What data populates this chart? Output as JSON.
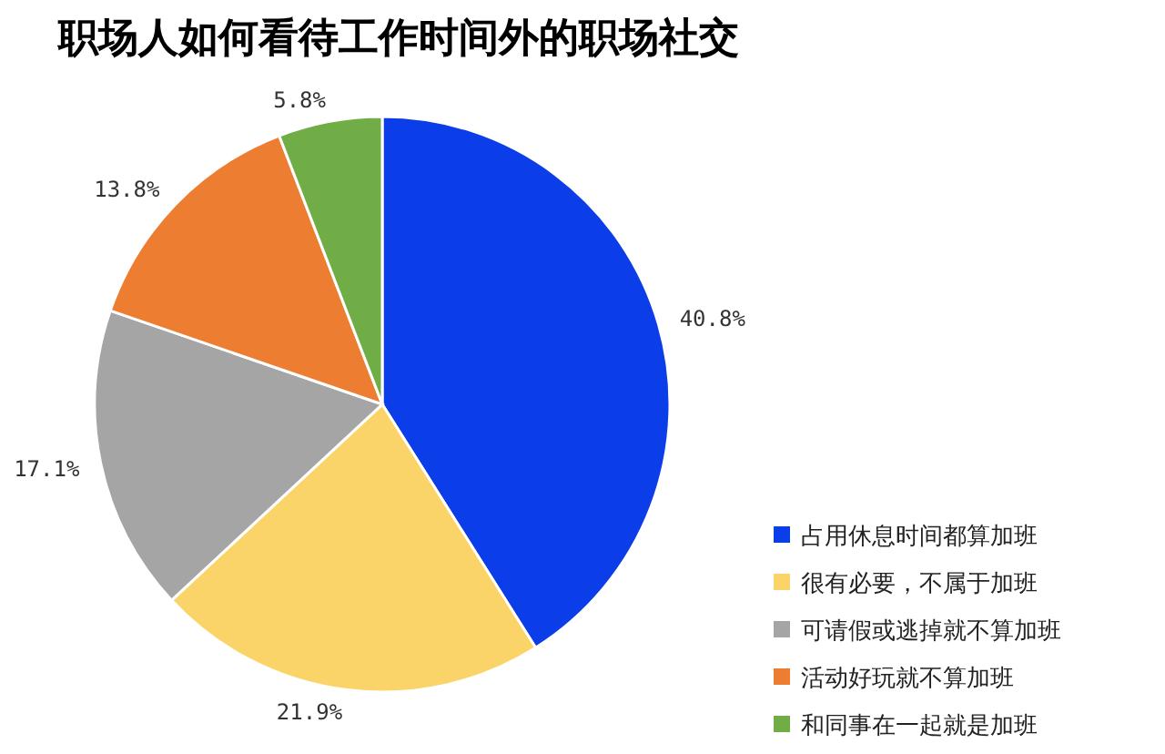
{
  "chart_data": {
    "type": "pie",
    "title": "职场人如何看待工作时间外的职场社交",
    "categories": [
      "占用休息时间都算加班",
      "很有必要，不属于加班",
      "可请假或逃掉就不算加班",
      "活动好玩就不算加班",
      "和同事在一起就是加班"
    ],
    "values": [
      40.8,
      21.9,
      17.1,
      13.8,
      5.8
    ],
    "colors": [
      "#0b3ee8",
      "#fbd469",
      "#a5a5a5",
      "#ed7d31",
      "#70ad47"
    ],
    "value_labels": [
      "40.8%",
      "21.9%",
      "17.1%",
      "13.8%",
      "5.8%"
    ],
    "legend": "right"
  }
}
